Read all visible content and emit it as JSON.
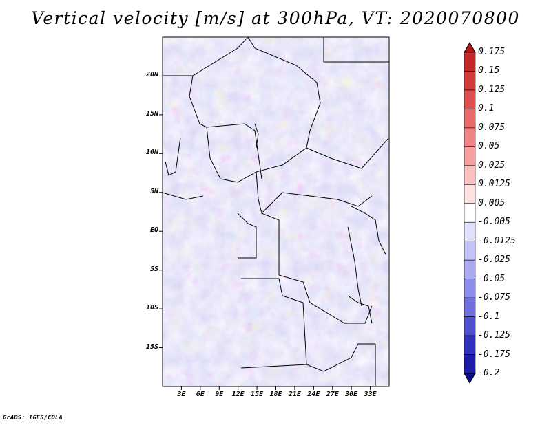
{
  "title": "Vertical velocity [m/s] at 300hPa, VT: 2020070800",
  "footer": "GrADS: IGES/COLA",
  "map": {
    "lon_range": [
      0,
      36
    ],
    "lat_range": [
      -20,
      25
    ],
    "lat_ticks": [
      {
        "value": 20,
        "label": "20N"
      },
      {
        "value": 15,
        "label": "15N"
      },
      {
        "value": 10,
        "label": "10N"
      },
      {
        "value": 5,
        "label": "5N"
      },
      {
        "value": 0,
        "label": "EQ"
      },
      {
        "value": -5,
        "label": "5S"
      },
      {
        "value": -10,
        "label": "10S"
      },
      {
        "value": -15,
        "label": "15S"
      }
    ],
    "lon_ticks": [
      {
        "value": 3,
        "label": "3E"
      },
      {
        "value": 6,
        "label": "6E"
      },
      {
        "value": 9,
        "label": "9E"
      },
      {
        "value": 12,
        "label": "12E"
      },
      {
        "value": 15,
        "label": "15E"
      },
      {
        "value": 18,
        "label": "18E"
      },
      {
        "value": 21,
        "label": "21E"
      },
      {
        "value": 24,
        "label": "24E"
      },
      {
        "value": 27,
        "label": "27E"
      },
      {
        "value": 30,
        "label": "30E"
      },
      {
        "value": 33,
        "label": "33E"
      }
    ]
  },
  "colorbar": {
    "labels": [
      "0.175",
      "0.15",
      "0.125",
      "0.1",
      "0.075",
      "0.05",
      "0.025",
      "0.0125",
      "0.005",
      "-0.005",
      "-0.0125",
      "-0.025",
      "-0.05",
      "-0.075",
      "-0.1",
      "-0.125",
      "-0.175",
      "-0.2"
    ],
    "colors": [
      "#b01818",
      "#c42828",
      "#d43c3c",
      "#e05050",
      "#e86a6a",
      "#f08484",
      "#f6a0a0",
      "#fbc0c0",
      "#fde0e0",
      "#ffffff",
      "#e0e0fc",
      "#c4c4f8",
      "#aaaaf2",
      "#8c8cec",
      "#7070e0",
      "#5050d0",
      "#3030c0",
      "#1c1ca8",
      "#0c0c8c"
    ]
  }
}
